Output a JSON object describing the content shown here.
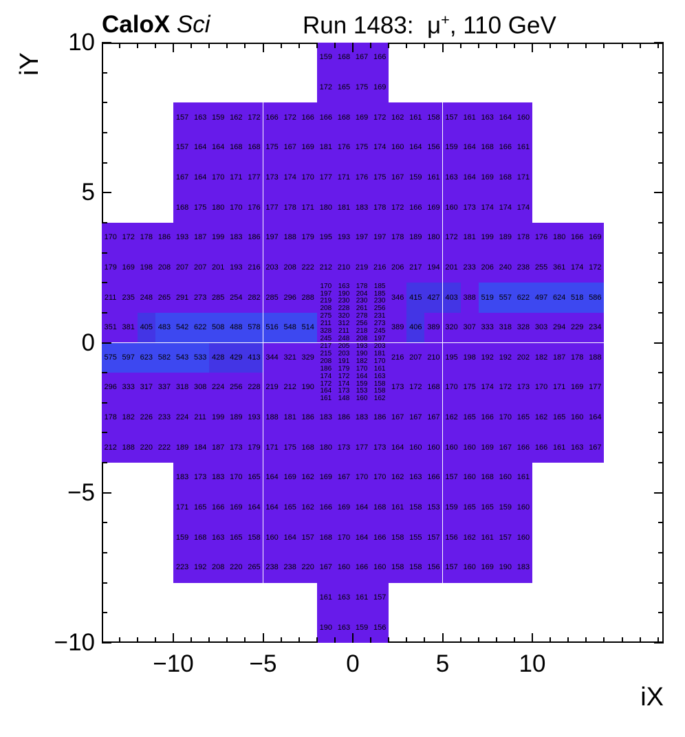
{
  "title": {
    "left_bold": "CaloX",
    "left_italic": " Sci",
    "right_pre": "Run 1483:  ",
    "right_mu": "μ",
    "right_sup": "+",
    "right_post": ", 110 GeV"
  },
  "axes": {
    "x_title": "iX",
    "y_title": "iY",
    "x_tick_values": [
      -10,
      -5,
      0,
      5,
      10
    ],
    "x_tick_labels": [
      "−10",
      "−5",
      "0",
      "5",
      "10"
    ],
    "y_tick_values": [
      10,
      5,
      0,
      -5,
      -10
    ],
    "y_tick_labels": [
      "10",
      "5",
      "0",
      "−5",
      "−10"
    ]
  },
  "chart_data": {
    "type": "heatmap",
    "title": "CaloX Sci  Run 1483: mu+, 110 GeV",
    "xlabel": "iX",
    "ylabel": "iY",
    "x_range": [
      -14,
      17.3
    ],
    "y_range": [
      -10,
      10
    ],
    "columns_total": 28,
    "col_ix_start": -14,
    "cell_value_min": 148,
    "cell_value_max": 624,
    "background": "#ffffff",
    "frame_color": "#000000",
    "text_color": "#000000",
    "palette": {
      "violet": "#671BEA",
      "blue_mid": "#4335E5",
      "blue_high": "#3D48F0",
      "thresholds": [
        400,
        470
      ]
    },
    "coarse_rows": [
      {
        "iy_top": 10,
        "segments": [
          {
            "col": 12,
            "values": [
              159,
              168,
              167,
              166
            ]
          }
        ]
      },
      {
        "iy_top": 9,
        "segments": [
          {
            "col": 12,
            "values": [
              172,
              165,
              175,
              169
            ]
          }
        ]
      },
      {
        "iy_top": 8,
        "segments": [
          {
            "col": 4,
            "values": [
              157,
              163,
              159,
              162,
              172,
              166,
              172,
              166,
              166,
              168,
              169,
              172,
              162,
              161,
              158,
              157,
              161,
              163,
              164,
              160
            ]
          }
        ]
      },
      {
        "iy_top": 7,
        "segments": [
          {
            "col": 4,
            "values": [
              157,
              164,
              164,
              168,
              168,
              175,
              167,
              169,
              181,
              176,
              175,
              174,
              160,
              164,
              156,
              159,
              164,
              168,
              166,
              161
            ]
          }
        ]
      },
      {
        "iy_top": 6,
        "segments": [
          {
            "col": 4,
            "values": [
              167,
              164,
              170,
              171,
              177,
              173,
              174,
              170,
              177,
              171,
              176,
              175,
              167,
              159,
              161,
              163,
              164,
              169,
              168,
              171
            ]
          }
        ]
      },
      {
        "iy_top": 5,
        "segments": [
          {
            "col": 4,
            "values": [
              168,
              175,
              180,
              170,
              176,
              177,
              178,
              171,
              180,
              181,
              183,
              178,
              172,
              166,
              169,
              160,
              173,
              174,
              174,
              174
            ]
          }
        ]
      },
      {
        "iy_top": 4,
        "segments": [
          {
            "col": 0,
            "values": [
              170,
              172,
              178,
              186,
              193,
              187,
              199,
              183,
              186,
              197,
              188,
              179,
              195,
              193,
              197,
              197,
              178,
              189,
              180,
              172,
              181,
              199,
              189,
              178,
              176,
              180,
              166,
              169
            ]
          }
        ]
      },
      {
        "iy_top": 3,
        "segments": [
          {
            "col": 0,
            "values": [
              179,
              169,
              198,
              208,
              207,
              207,
              201,
              193,
              216,
              203,
              208,
              222,
              212,
              210,
              219,
              216,
              206,
              217,
              194,
              201,
              233,
              206,
              240,
              238,
              255,
              361,
              174,
              172
            ]
          }
        ]
      },
      {
        "iy_top": 2,
        "segments": [
          {
            "col": 0,
            "values": [
              211,
              235,
              248,
              265,
              291,
              273,
              285,
              254,
              282,
              285,
              296,
              288
            ]
          },
          {
            "col": 16,
            "values": [
              346,
              415,
              427,
              403,
              388,
              519,
              557,
              622,
              497,
              624,
              518,
              586
            ]
          }
        ]
      },
      {
        "iy_top": 1,
        "segments": [
          {
            "col": 0,
            "values": [
              351,
              381,
              405,
              483,
              542,
              622,
              508,
              488,
              578,
              516,
              548,
              514
            ]
          },
          {
            "col": 16,
            "values": [
              389,
              406,
              389,
              320,
              307,
              333,
              318,
              328,
              303,
              294,
              229,
              234
            ]
          }
        ]
      },
      {
        "iy_top": 0,
        "segments": [
          {
            "col": 0,
            "values": [
              575,
              597,
              623,
              582,
              543,
              533,
              428,
              429,
              413,
              344,
              321,
              329
            ]
          },
          {
            "col": 16,
            "values": [
              216,
              207,
              210,
              195,
              198,
              192,
              192,
              202,
              182,
              187,
              178,
              188
            ]
          }
        ]
      },
      {
        "iy_top": -1,
        "segments": [
          {
            "col": 0,
            "values": [
              296,
              333,
              317,
              337,
              318,
              308,
              224,
              256,
              228,
              219,
              212,
              190
            ]
          },
          {
            "col": 16,
            "values": [
              173,
              172,
              168,
              170,
              175,
              174,
              172,
              173,
              170,
              171,
              169,
              177
            ]
          }
        ]
      },
      {
        "iy_top": -2,
        "segments": [
          {
            "col": 0,
            "values": [
              178,
              182,
              226,
              233,
              224,
              211,
              199,
              189,
              193,
              188,
              181,
              186,
              183,
              186,
              183,
              186,
              167,
              167,
              167,
              162,
              165,
              166,
              170,
              165,
              162,
              165,
              160,
              164
            ]
          }
        ]
      },
      {
        "iy_top": -3,
        "segments": [
          {
            "col": 0,
            "values": [
              212,
              188,
              220,
              222,
              189,
              184,
              187,
              173,
              179,
              171,
              175,
              168,
              180,
              173,
              177,
              173,
              164,
              160,
              160,
              160,
              160,
              169,
              167,
              166,
              166,
              161,
              163,
              167
            ]
          }
        ]
      },
      {
        "iy_top": -4,
        "segments": [
          {
            "col": 4,
            "values": [
              183,
              173,
              183,
              170,
              165,
              164,
              169,
              162,
              169,
              167,
              170,
              170,
              162,
              163,
              166,
              157,
              160,
              168,
              160,
              161
            ]
          }
        ]
      },
      {
        "iy_top": -5,
        "segments": [
          {
            "col": 4,
            "values": [
              171,
              165,
              166,
              169,
              164,
              164,
              165,
              162,
              166,
              169,
              164,
              168,
              161,
              158,
              153,
              159,
              165,
              165,
              159,
              160
            ]
          }
        ]
      },
      {
        "iy_top": -6,
        "segments": [
          {
            "col": 4,
            "values": [
              159,
              168,
              163,
              165,
              158,
              160,
              164,
              157,
              168,
              170,
              164,
              166,
              158,
              155,
              157,
              156,
              162,
              161,
              157,
              160
            ]
          }
        ]
      },
      {
        "iy_top": -7,
        "segments": [
          {
            "col": 4,
            "values": [
              223,
              192,
              208,
              220,
              265,
              238,
              238,
              220,
              167,
              160,
              166,
              160,
              158,
              158,
              156,
              157,
              160,
              169,
              190,
              183
            ]
          }
        ]
      },
      {
        "iy_top": -8,
        "segments": [
          {
            "col": 12,
            "values": [
              161,
              163,
              161,
              157
            ]
          }
        ]
      },
      {
        "iy_top": -9,
        "segments": [
          {
            "col": 12,
            "values": [
              190,
              163,
              159,
              156
            ]
          }
        ]
      }
    ],
    "fine_region": {
      "col": 12,
      "n_cols": 4,
      "iy_top": 2,
      "iy_bottom": -2,
      "n_sub_rows": 16,
      "sub_rows": [
        [
          170,
          163,
          178,
          185
        ],
        [
          197,
          190,
          204,
          185
        ],
        [
          219,
          230,
          230,
          230
        ],
        [
          208,
          228,
          261,
          256
        ],
        [
          275,
          320,
          278,
          231
        ],
        [
          211,
          312,
          256,
          273
        ],
        [
          328,
          211,
          218,
          245
        ],
        [
          245,
          248,
          208,
          197
        ],
        [
          217,
          205,
          193,
          203
        ],
        [
          215,
          203,
          190,
          181
        ],
        [
          208,
          191,
          182,
          170
        ],
        [
          186,
          179,
          170,
          161
        ],
        [
          174,
          172,
          164,
          163
        ],
        [
          172,
          174,
          159,
          158
        ],
        [
          164,
          173,
          153,
          158
        ],
        [
          161,
          148,
          160,
          162
        ]
      ]
    }
  }
}
